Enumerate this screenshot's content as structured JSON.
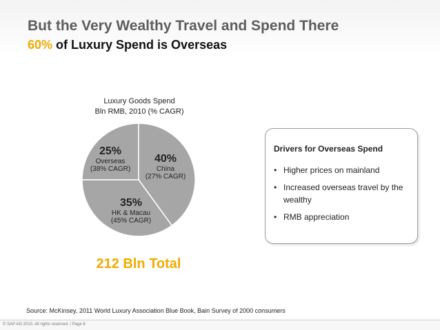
{
  "slide": {
    "title": "But the Very Wealthy Travel and Spend There",
    "subtitle_accent": "60%",
    "subtitle_rest": " of Luxury Spend is Overseas",
    "source": "Source: McKinsey, 2011 World Luxury Association Blue Book, Bain Survey of 2000 consumers",
    "footer": "© SAP AG 2010. All rights reserved. / Page 6"
  },
  "chart_data": {
    "type": "pie",
    "title": "Luxury Goods Spend",
    "subtitle": "Bln RMB, 2010 (% CAGR)",
    "total_label": "212 Bln Total",
    "slices": [
      {
        "pct_label": "25%",
        "name": "Overseas",
        "cagr": "(38% CAGR)",
        "value": 25
      },
      {
        "pct_label": "40%",
        "name": "China",
        "cagr": "(27% CAGR)",
        "value": 40
      },
      {
        "pct_label": "35%",
        "name": "HK & Macau",
        "cagr": "(45% CAGR)",
        "value": 35
      }
    ],
    "colors": {
      "fill": "#a6a6a6",
      "edge": "#ffffff"
    }
  },
  "drivers": {
    "title": "Drivers for Overseas Spend",
    "items": [
      "Higher prices on mainland",
      "Increased overseas travel by the wealthy",
      "RMB appreciation"
    ]
  },
  "colors": {
    "accent": "#f0ab00",
    "title": "#5d5d5d"
  }
}
